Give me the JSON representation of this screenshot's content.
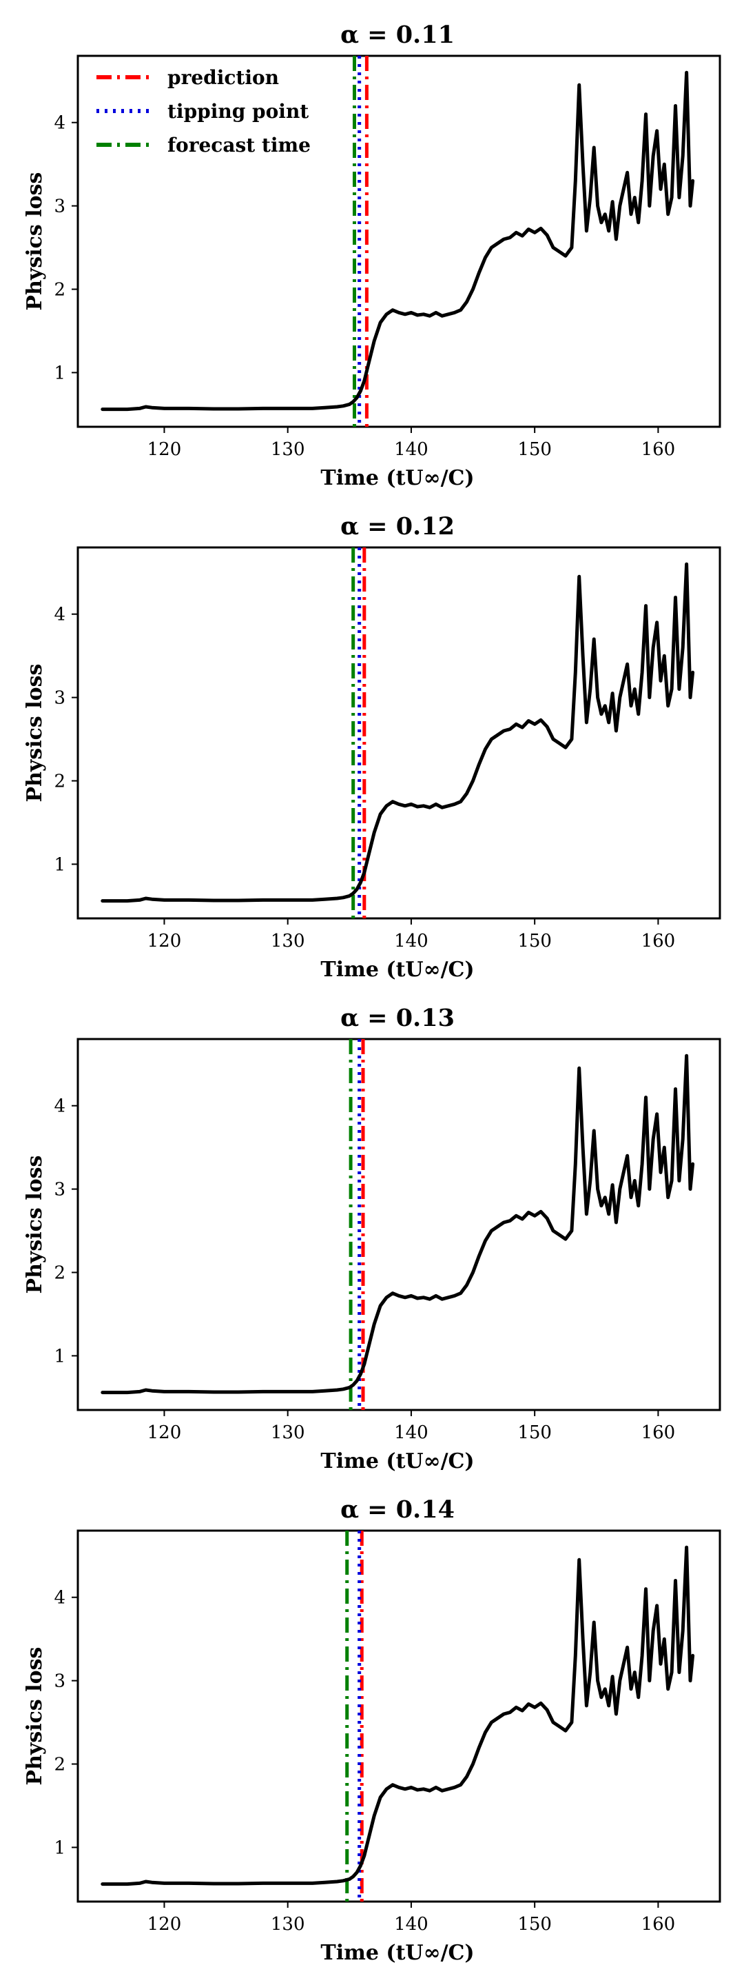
{
  "chart_data": [
    {
      "type": "line",
      "title": "α = 0.11",
      "xlabel": "Time (tU∞/C)",
      "ylabel": "Physics loss",
      "xlim": [
        113,
        165
      ],
      "ylim": [
        0.35,
        4.8
      ],
      "xticks": [
        120,
        130,
        140,
        150,
        160
      ],
      "yticks": [
        1,
        2,
        3,
        4
      ],
      "vlines": [
        {
          "name": "prediction",
          "x": 136.4
        },
        {
          "name": "tipping point",
          "x": 135.8
        },
        {
          "name": "forecast time",
          "x": 135.4
        }
      ],
      "legend_location": "top-left"
    },
    {
      "type": "line",
      "title": "α = 0.12",
      "xlabel": "Time (tU∞/C)",
      "ylabel": "Physics loss",
      "xlim": [
        113,
        165
      ],
      "ylim": [
        0.35,
        4.8
      ],
      "xticks": [
        120,
        130,
        140,
        150,
        160
      ],
      "yticks": [
        1,
        2,
        3,
        4
      ],
      "vlines": [
        {
          "name": "prediction",
          "x": 136.2
        },
        {
          "name": "tipping point",
          "x": 135.8
        },
        {
          "name": "forecast time",
          "x": 135.3
        }
      ]
    },
    {
      "type": "line",
      "title": "α = 0.13",
      "xlabel": "Time (tU∞/C)",
      "ylabel": "Physics loss",
      "xlim": [
        113,
        165
      ],
      "ylim": [
        0.35,
        4.8
      ],
      "xticks": [
        120,
        130,
        140,
        150,
        160
      ],
      "yticks": [
        1,
        2,
        3,
        4
      ],
      "vlines": [
        {
          "name": "prediction",
          "x": 136.1
        },
        {
          "name": "tipping point",
          "x": 135.8
        },
        {
          "name": "forecast time",
          "x": 135.1
        }
      ]
    },
    {
      "type": "line",
      "title": "α = 0.14",
      "xlabel": "Time (tU∞/C)",
      "ylabel": "Physics loss",
      "xlim": [
        113,
        165
      ],
      "ylim": [
        0.35,
        4.8
      ],
      "xticks": [
        120,
        130,
        140,
        150,
        160
      ],
      "yticks": [
        1,
        2,
        3,
        4
      ],
      "vlines": [
        {
          "name": "prediction",
          "x": 136.0
        },
        {
          "name": "tipping point",
          "x": 135.8
        },
        {
          "name": "forecast time",
          "x": 134.8
        }
      ]
    }
  ],
  "series": {
    "name": "physics loss",
    "color": "#000000",
    "x": [
      115,
      116,
      117,
      118,
      118.5,
      119,
      120,
      122,
      124,
      126,
      128,
      130,
      132,
      133,
      134,
      134.5,
      135,
      135.3,
      135.6,
      135.9,
      136.2,
      136.5,
      137,
      137.5,
      138,
      138.5,
      139,
      139.5,
      140,
      140.5,
      141,
      141.5,
      142,
      142.5,
      143,
      143.5,
      144,
      144.5,
      145,
      145.5,
      146,
      146.5,
      147,
      147.5,
      148,
      148.5,
      149,
      149.5,
      150,
      150.5,
      151,
      151.5,
      152,
      152.5,
      153,
      153.3,
      153.6,
      153.9,
      154.2,
      154.5,
      154.8,
      155.1,
      155.4,
      155.7,
      156,
      156.3,
      156.6,
      156.9,
      157.2,
      157.5,
      157.8,
      158.1,
      158.4,
      158.7,
      159,
      159.3,
      159.6,
      159.9,
      160.2,
      160.5,
      160.8,
      161.1,
      161.4,
      161.7,
      162,
      162.3,
      162.6,
      162.8
    ],
    "y": [
      0.56,
      0.56,
      0.56,
      0.57,
      0.59,
      0.58,
      0.57,
      0.57,
      0.565,
      0.565,
      0.57,
      0.57,
      0.57,
      0.58,
      0.59,
      0.6,
      0.62,
      0.65,
      0.7,
      0.78,
      0.9,
      1.08,
      1.38,
      1.6,
      1.7,
      1.75,
      1.72,
      1.7,
      1.72,
      1.69,
      1.7,
      1.68,
      1.72,
      1.68,
      1.7,
      1.72,
      1.75,
      1.85,
      2.0,
      2.2,
      2.38,
      2.5,
      2.55,
      2.6,
      2.62,
      2.68,
      2.64,
      2.72,
      2.68,
      2.73,
      2.65,
      2.5,
      2.45,
      2.4,
      2.5,
      3.3,
      4.45,
      3.5,
      2.7,
      3.1,
      3.7,
      3.0,
      2.8,
      2.9,
      2.7,
      3.05,
      2.6,
      3.0,
      3.2,
      3.4,
      2.9,
      3.1,
      2.8,
      3.3,
      4.1,
      3.0,
      3.6,
      3.9,
      3.2,
      3.5,
      2.9,
      3.1,
      4.2,
      3.1,
      3.6,
      4.6,
      3.0,
      3.3
    ]
  },
  "legend": {
    "items": [
      {
        "label": "prediction",
        "color": "#ff0000"
      },
      {
        "label": "tipping point",
        "color": "#0000dd"
      },
      {
        "label": "forecast time",
        "color": "#008000"
      }
    ]
  }
}
